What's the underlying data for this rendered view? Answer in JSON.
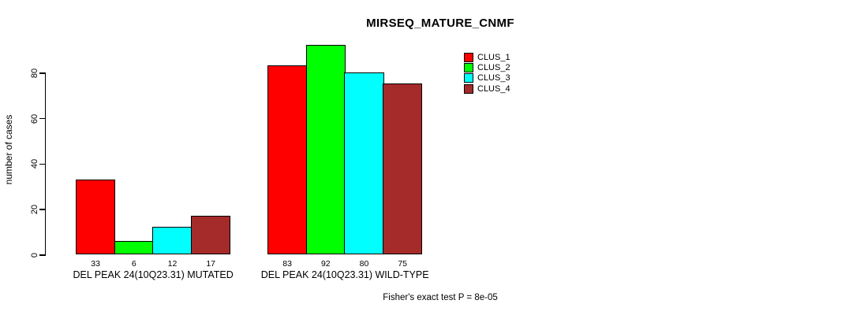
{
  "chart_data": {
    "type": "bar",
    "title": "MIRSEQ_MATURE_CNMF",
    "ylabel": "number of cases",
    "yticks": [
      0,
      20,
      40,
      60,
      80
    ],
    "ylim": [
      0,
      92
    ],
    "grid": false,
    "legend_position": "top-right-inside",
    "legend": [
      {
        "label": "CLUS_1",
        "color": "#ff0000"
      },
      {
        "label": "CLUS_2",
        "color": "#00ff00"
      },
      {
        "label": "CLUS_3",
        "color": "#00ffff"
      },
      {
        "label": "CLUS_4",
        "color": "#a52a2a"
      }
    ],
    "groups": [
      {
        "label": "DEL PEAK 24(10Q23.31) MUTATED",
        "values": [
          33,
          6,
          12,
          17
        ]
      },
      {
        "label": "DEL PEAK 24(10Q23.31) WILD-TYPE",
        "values": [
          83,
          92,
          80,
          75
        ]
      }
    ],
    "footnote": "Fisher's exact test P = 8e-05"
  }
}
